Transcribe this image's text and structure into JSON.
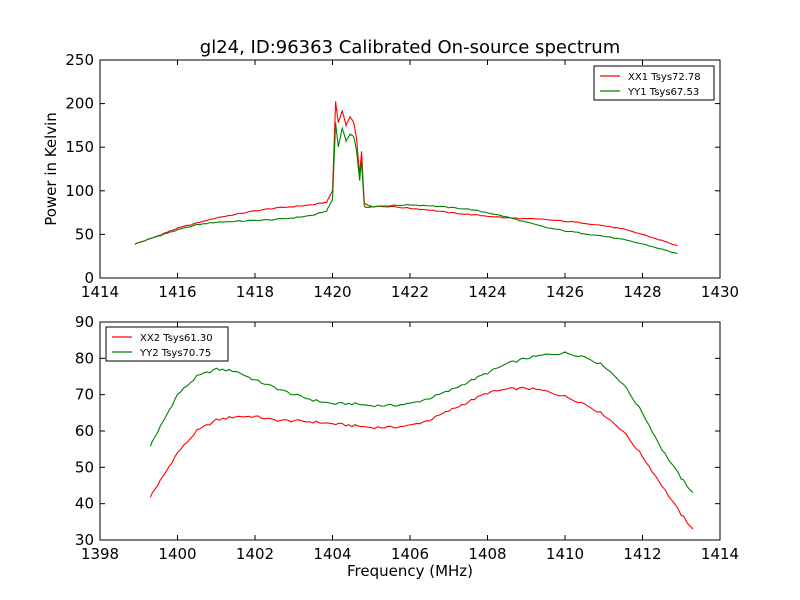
{
  "figure": {
    "title": "gl24, ID:96363 Calibrated On-source spectrum",
    "colors": {
      "red": "#ff0000",
      "green": "#008000",
      "frame": "#000000",
      "background": "#ffffff"
    }
  },
  "chart_data": [
    {
      "type": "line",
      "title": "gl24, ID:96363 Calibrated On-source spectrum",
      "xlabel": "",
      "ylabel": "Power in Kelvin",
      "xlim": [
        1414,
        1430
      ],
      "ylim": [
        0,
        250
      ],
      "xticks": [
        "1414",
        "1416",
        "1418",
        "1420",
        "1422",
        "1424",
        "1426",
        "1428",
        "1430"
      ],
      "yticks": [
        "0",
        "50",
        "100",
        "150",
        "200",
        "250"
      ],
      "grid": false,
      "legend": "top-right",
      "series": [
        {
          "name": "XX1 Tsys72.78",
          "color": "#ff0000",
          "x": [
            1414.9,
            1415.3,
            1415.7,
            1416.0,
            1416.5,
            1417.0,
            1417.5,
            1418.0,
            1418.5,
            1419.0,
            1419.5,
            1419.85,
            1420.0,
            1420.08,
            1420.15,
            1420.25,
            1420.35,
            1420.45,
            1420.55,
            1420.62,
            1420.7,
            1420.75,
            1420.82,
            1420.9,
            1421.0,
            1421.5,
            1422.0,
            1422.5,
            1423.0,
            1423.5,
            1424.0,
            1424.5,
            1425.0,
            1425.5,
            1426.0,
            1426.5,
            1427.0,
            1427.5,
            1428.0,
            1428.5,
            1428.9
          ],
          "y": [
            39,
            45,
            52,
            57,
            63,
            69,
            73,
            77,
            80,
            82,
            84,
            87,
            100,
            202,
            178,
            192,
            175,
            185,
            178,
            160,
            118,
            145,
            86,
            84,
            82,
            82,
            80,
            78,
            75,
            73,
            71,
            69,
            68,
            67,
            65,
            63,
            60,
            56,
            50,
            43,
            37
          ]
        },
        {
          "name": "YY1 Tsys67.53",
          "color": "#008000",
          "x": [
            1414.9,
            1415.3,
            1415.7,
            1416.0,
            1416.5,
            1417.0,
            1417.5,
            1418.0,
            1418.5,
            1419.0,
            1419.5,
            1419.85,
            1420.0,
            1420.08,
            1420.15,
            1420.25,
            1420.35,
            1420.45,
            1420.55,
            1420.62,
            1420.7,
            1420.75,
            1420.82,
            1420.9,
            1421.0,
            1421.5,
            1422.0,
            1422.5,
            1423.0,
            1423.5,
            1424.0,
            1424.5,
            1425.0,
            1425.5,
            1426.0,
            1426.5,
            1427.0,
            1427.5,
            1428.0,
            1428.5,
            1428.9
          ],
          "y": [
            39,
            45,
            51,
            55,
            61,
            64,
            65,
            66,
            67,
            69,
            72,
            77,
            90,
            178,
            150,
            172,
            157,
            165,
            162,
            146,
            112,
            135,
            82,
            81,
            82,
            83,
            84,
            83,
            81,
            79,
            75,
            70,
            64,
            58,
            54,
            51,
            48,
            44,
            39,
            33,
            28
          ]
        }
      ]
    },
    {
      "type": "line",
      "title": "",
      "xlabel": "Frequency (MHz)",
      "ylabel": "",
      "xlim": [
        1398,
        1414
      ],
      "ylim": [
        30,
        90
      ],
      "xticks": [
        "1398",
        "1400",
        "1402",
        "1404",
        "1406",
        "1408",
        "1410",
        "1412",
        "1414"
      ],
      "yticks": [
        "30",
        "40",
        "50",
        "60",
        "70",
        "80",
        "90"
      ],
      "grid": false,
      "legend": "top-left",
      "series": [
        {
          "name": "XX2 Tsys61.30",
          "color": "#ff0000",
          "x": [
            1399.3,
            1399.6,
            1400.0,
            1400.5,
            1401.0,
            1401.5,
            1402.0,
            1402.5,
            1403.0,
            1403.5,
            1404.0,
            1404.5,
            1405.0,
            1405.5,
            1406.0,
            1406.5,
            1407.0,
            1407.5,
            1408.0,
            1408.5,
            1409.0,
            1409.5,
            1410.0,
            1410.5,
            1411.0,
            1411.5,
            1412.0,
            1412.5,
            1413.0,
            1413.3
          ],
          "y": [
            42,
            47,
            54,
            60,
            63,
            64,
            64,
            63,
            62.8,
            62.5,
            62,
            61.5,
            61,
            61,
            61.5,
            63,
            65.5,
            68,
            70.5,
            71.5,
            71.8,
            71,
            69.5,
            67.5,
            64.5,
            60,
            53,
            45,
            37,
            33
          ]
        },
        {
          "name": "YY2 Tsys70.75",
          "color": "#008000",
          "x": [
            1399.3,
            1399.6,
            1400.0,
            1400.5,
            1401.0,
            1401.5,
            1402.0,
            1402.5,
            1403.0,
            1403.5,
            1404.0,
            1404.5,
            1405.0,
            1405.5,
            1406.0,
            1406.5,
            1407.0,
            1407.5,
            1408.0,
            1408.5,
            1409.0,
            1409.5,
            1410.0,
            1410.5,
            1411.0,
            1411.5,
            1412.0,
            1412.5,
            1413.0,
            1413.3
          ],
          "y": [
            56,
            62,
            70,
            75,
            77,
            76.5,
            74,
            72,
            70,
            68.5,
            67.5,
            67.5,
            67,
            67,
            67.5,
            69,
            71,
            73.5,
            76,
            78.5,
            80,
            81,
            81.5,
            80.5,
            78,
            73,
            65,
            55,
            47,
            43
          ]
        }
      ]
    }
  ]
}
